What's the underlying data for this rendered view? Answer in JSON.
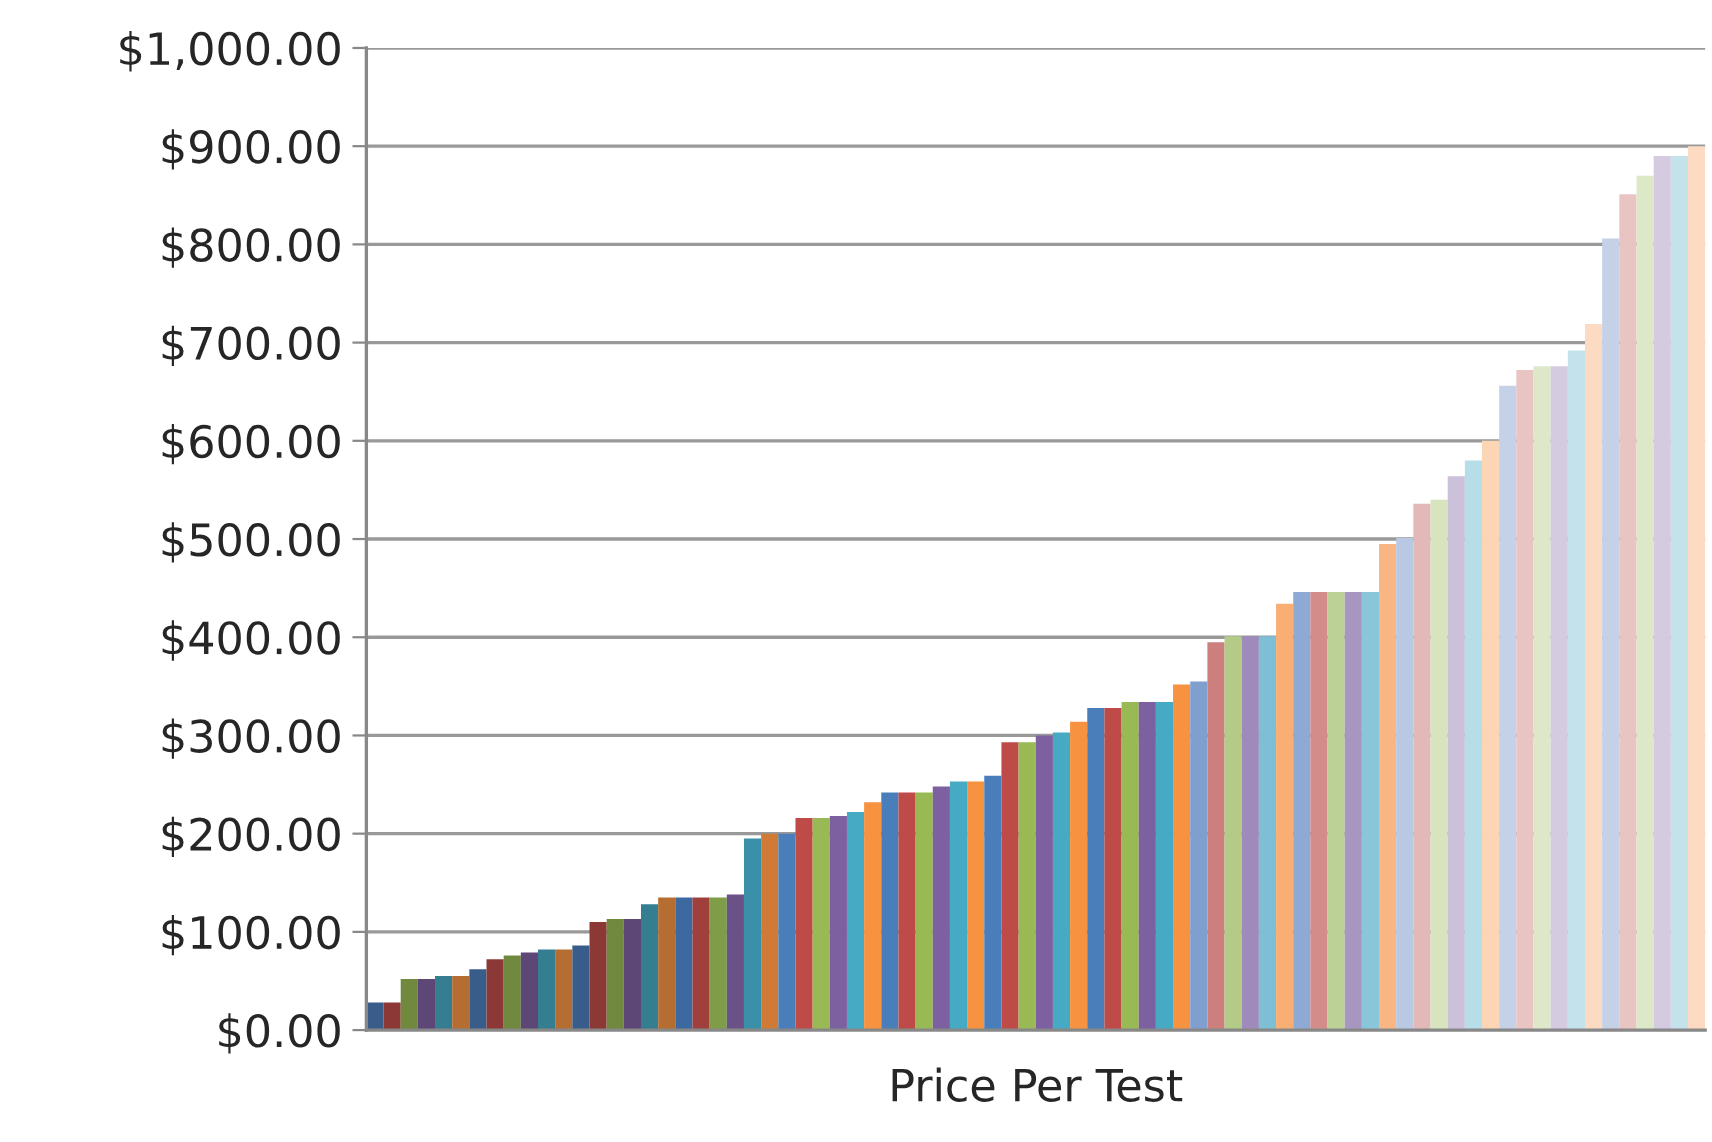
{
  "chart_data": {
    "type": "bar",
    "xlabel": "Price Per Test",
    "categories": [
      null,
      null,
      null,
      null,
      null,
      null,
      null,
      null,
      null,
      null,
      null,
      null,
      null,
      null,
      null,
      null,
      null,
      null,
      null,
      null,
      null,
      null,
      null,
      null,
      null,
      null,
      null,
      null,
      null,
      null,
      null,
      null,
      null,
      null,
      null,
      null,
      null,
      null,
      null,
      null,
      null,
      null,
      null,
      null,
      null,
      null,
      null,
      null,
      null,
      null,
      null,
      null,
      null,
      null,
      null,
      null,
      null,
      null,
      null,
      null,
      null,
      null,
      null,
      null,
      null,
      null,
      null,
      null,
      null,
      null,
      null,
      null,
      null,
      null,
      null,
      null,
      null,
      null
    ],
    "values": [
      28,
      28,
      52,
      52,
      55,
      55,
      62,
      72,
      76,
      79,
      82,
      82,
      86,
      110,
      113,
      113,
      128,
      135,
      135,
      135,
      135,
      138,
      195,
      200,
      200,
      216,
      216,
      218,
      222,
      232,
      242,
      242,
      242,
      248,
      253,
      253,
      259,
      293,
      293,
      300,
      303,
      314,
      328,
      328,
      334,
      334,
      334,
      352,
      355,
      395,
      401,
      401,
      401,
      434,
      446,
      446,
      446,
      446,
      446,
      495,
      501,
      536,
      540,
      564,
      580,
      600,
      656,
      672,
      676,
      676,
      692,
      719,
      806,
      851,
      870,
      890,
      890,
      900
    ],
    "colors": [
      "#385d8a",
      "#8c3836",
      "#71893f",
      "#5c4776",
      "#357d91",
      "#b66d31",
      "#385d8a",
      "#8c3836",
      "#71893f",
      "#5c4776",
      "#357d91",
      "#b66d31",
      "#385d8a",
      "#8c3836",
      "#71893f",
      "#5c4776",
      "#357d91",
      "#b66d31",
      "#3c69a0",
      "#a0403d",
      "#7f9c48",
      "#6a5288",
      "#3a90a8",
      "#d07a36",
      "#4a7ebb",
      "#be4b48",
      "#98b954",
      "#7d60a0",
      "#46aac5",
      "#f69240",
      "#4a7ebb",
      "#be4b48",
      "#98b954",
      "#7d60a0",
      "#46aac5",
      "#f69240",
      "#4a7ebb",
      "#be4b48",
      "#98b954",
      "#7d60a0",
      "#46aac5",
      "#f69240",
      "#4a7ebb",
      "#be4b48",
      "#98b954",
      "#7d60a0",
      "#46aac5",
      "#f69240",
      "#7f9fcf",
      "#cd7f7e",
      "#b3cb86",
      "#9e8bbb",
      "#7ebfd6",
      "#f9ae74",
      "#8ea9d3",
      "#d48c8b",
      "#bcd196",
      "#a797c0",
      "#8ac6da",
      "#fab584",
      "#b9c9e3",
      "#e3b9b8",
      "#d7e4bd",
      "#ccc1da",
      "#b7dde8",
      "#fcd5b5",
      "#c4d1e7",
      "#e8c4c3",
      "#dde8c8",
      "#d4cbe0",
      "#c3e2ec",
      "#fddbc3",
      "#c4d1e7",
      "#e8c4c3",
      "#dde8c8",
      "#d4cbe0",
      "#c3e2ec",
      "#fddbc3"
    ],
    "ylim": [
      0,
      1000
    ],
    "yticks": [
      {
        "value": 0,
        "label": "$0.00"
      },
      {
        "value": 100,
        "label": "$100.00"
      },
      {
        "value": 200,
        "label": "$200.00"
      },
      {
        "value": 300,
        "label": "$300.00"
      },
      {
        "value": 400,
        "label": "$400.00"
      },
      {
        "value": 500,
        "label": "$500.00"
      },
      {
        "value": 600,
        "label": "$600.00"
      },
      {
        "value": 700,
        "label": "$700.00"
      },
      {
        "value": 800,
        "label": "$800.00"
      },
      {
        "value": 900,
        "label": "$900.00"
      },
      {
        "value": 1000,
        "label": "$1,000.00"
      }
    ],
    "grid": "y",
    "legend": false
  }
}
